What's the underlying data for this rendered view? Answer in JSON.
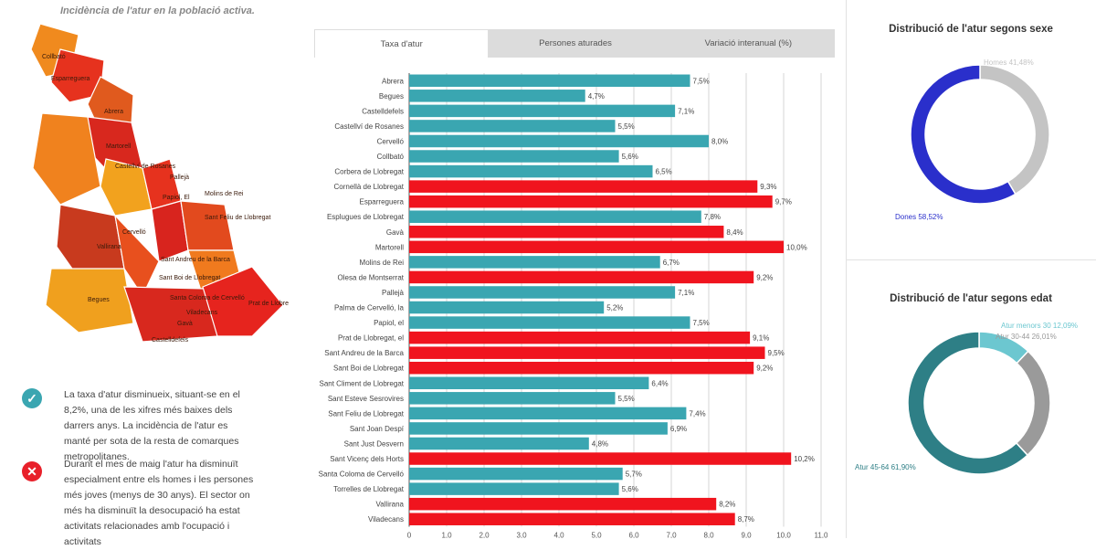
{
  "map": {
    "caption": "Incidència de l'atur en la població activa.",
    "labels": [
      "Collbató",
      "Esparreguera",
      "Abrera",
      "Martorell",
      "Castellví de Rosanes",
      "Pallejà",
      "Papiol, El",
      "Molins de Rei",
      "Sant Feliu de Llobregat",
      "Cervelló",
      "Vallirana",
      "Sant Andreu de la Barca",
      "Sant Boi de Llobregat",
      "Santa Coloma de Cervelló",
      "Viladecans",
      "Prat de Llobregat, El",
      "Gavà",
      "Castelldefels",
      "Begues"
    ]
  },
  "notes": [
    {
      "icon": "check-icon",
      "color": "#3aa6b1",
      "text": "La taxa d'atur disminueix, situant-se en el 8,2%, una de les xifres més baixes dels darrers anys. La incidència de l'atur es manté per sota de la resta de comarques metropolitanes."
    },
    {
      "icon": "cross-icon",
      "color": "#e8202a",
      "text": "Durant el mes de maig l'atur ha disminuït especialment entre els homes i les persones més joves (menys de 30 anys). El sector on més ha disminuït la desocupació ha estat activitats relacionades amb l'ocupació i activitats"
    }
  ],
  "tabs": [
    {
      "label": "Taxa d'atur",
      "active": true
    },
    {
      "label": "Persones aturades",
      "active": false
    },
    {
      "label": "Variació interanual (%)",
      "active": false
    }
  ],
  "colors": {
    "below": "#3aa6b1",
    "above": "#f0141e",
    "dones": "#2a2fcb",
    "homes": "#c4c4c4",
    "age_young": "#6cc7d0",
    "age_old": "#9a9a9a",
    "age_mid": "#2e7f86"
  },
  "chart_data": [
    {
      "type": "bar",
      "orientation": "horizontal",
      "title": "",
      "categories": [
        "Abrera",
        "Begues",
        "Castelldefels",
        "Castellví de Rosanes",
        "Cervelló",
        "Collbató",
        "Corbera de Llobregat",
        "Cornellà de Llobregat",
        "Esparreguera",
        "Esplugues de Llobregat",
        "Gavà",
        "Martorell",
        "Molins de Rei",
        "Olesa de Montserrat",
        "Pallejà",
        "Palma de Cervelló, la",
        "Papiol, el",
        "Prat de Llobregat, el",
        "Sant Andreu de la Barca",
        "Sant Boi de Llobregat",
        "Sant Climent de Llobregat",
        "Sant Esteve Sesrovires",
        "Sant Feliu de Llobregat",
        "Sant Joan Despí",
        "Sant Just Desvern",
        "Sant Vicenç dels Horts",
        "Santa Coloma de Cervelló",
        "Torrelles de Llobregat",
        "Vallirana",
        "Viladecans"
      ],
      "values": [
        7.5,
        4.7,
        7.1,
        5.5,
        8.0,
        5.6,
        6.5,
        9.3,
        9.7,
        7.8,
        8.4,
        10.0,
        6.7,
        9.2,
        7.1,
        5.2,
        7.5,
        9.1,
        9.5,
        9.2,
        6.4,
        5.5,
        7.4,
        6.9,
        4.8,
        10.2,
        5.7,
        5.6,
        8.2,
        8.7
      ],
      "labels": [
        "7,5%",
        "4,7%",
        "7,1%",
        "5,5%",
        "8,0%",
        "5,6%",
        "6,5%",
        "9,3%",
        "9,7%",
        "7,8%",
        "8,4%",
        "10,0%",
        "6,7%",
        "9,2%",
        "7,1%",
        "5,2%",
        "7,5%",
        "9,1%",
        "9,5%",
        "9,2%",
        "6,4%",
        "5,5%",
        "7,4%",
        "6,9%",
        "4,8%",
        "10,2%",
        "5,7%",
        "5,6%",
        "8,2%",
        "8,7%"
      ],
      "above_average": [
        false,
        false,
        false,
        false,
        false,
        false,
        false,
        true,
        true,
        false,
        true,
        true,
        false,
        true,
        false,
        false,
        false,
        true,
        true,
        true,
        false,
        false,
        false,
        false,
        false,
        true,
        false,
        false,
        true,
        true
      ],
      "xlim": [
        0,
        11
      ],
      "xticks": [
        "0",
        "1,0",
        "2,0",
        "3,0",
        "4,0",
        "5,0",
        "6,0",
        "7,0",
        "8,0",
        "9,0",
        "10,0",
        "11,0"
      ]
    },
    {
      "type": "pie",
      "title": "Distribució de l'atur segons sexe",
      "slices": [
        {
          "name": "Homes",
          "value": 41.48,
          "label": "Homes 41,48%"
        },
        {
          "name": "Dones",
          "value": 58.52,
          "label": "Dones 58,52%"
        }
      ]
    },
    {
      "type": "pie",
      "title": "Distribució de l'atur segons edat",
      "slices": [
        {
          "name": "Atur menors 30",
          "value": 12.09,
          "label": "Atur menors 30 12,09%"
        },
        {
          "name": "Atur 30-44",
          "value": 26.01,
          "label": "Atur 30-44 26,01%"
        },
        {
          "name": "Atur 45-64",
          "value": 61.9,
          "label": "Atur 45-64 61,90%"
        }
      ]
    }
  ]
}
